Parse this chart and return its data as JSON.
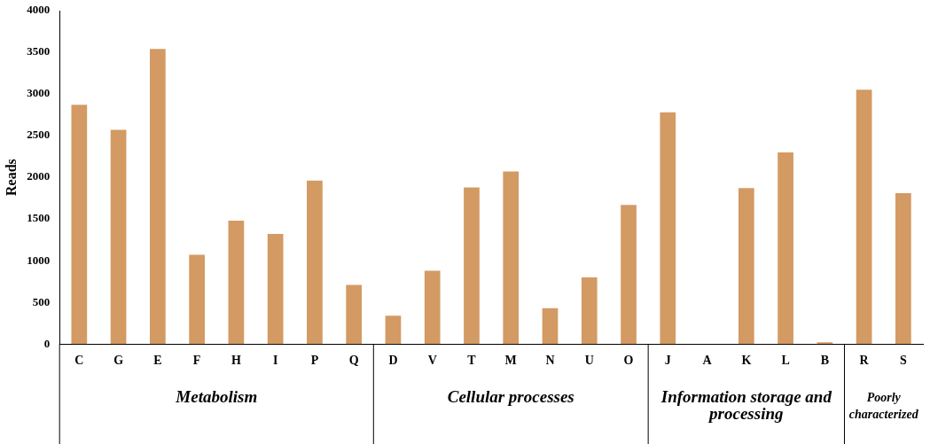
{
  "chart_data": {
    "type": "bar",
    "ylabel": "Reads",
    "categories": [
      "C",
      "G",
      "E",
      "F",
      "H",
      "I",
      "P",
      "Q",
      "D",
      "V",
      "T",
      "M",
      "N",
      "U",
      "O",
      "J",
      "A",
      "K",
      "L",
      "B",
      "R",
      "S"
    ],
    "values": [
      2870,
      2570,
      3540,
      1070,
      1480,
      1320,
      1960,
      710,
      340,
      880,
      1880,
      2070,
      430,
      800,
      1670,
      2780,
      null,
      1870,
      2300,
      20,
      3050,
      1810
    ],
    "color": "#d39a63",
    "ylim": [
      0,
      4000
    ],
    "yticks": [
      0,
      500,
      1000,
      1500,
      2000,
      2500,
      3000,
      3500,
      4000
    ],
    "grid": false,
    "legend": false,
    "annotations": [
      "Metabolism",
      "Cellular processes",
      "Information storage and processing",
      "Poorly characterized"
    ]
  }
}
